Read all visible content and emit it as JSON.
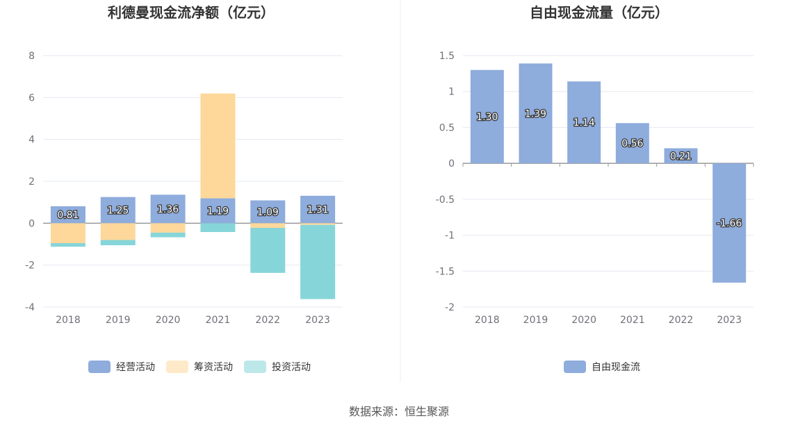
{
  "source": "数据来源：恒生聚源",
  "chart_data": [
    {
      "type": "bar",
      "stacked": true,
      "title": "利德曼现金流净额（亿元）",
      "categories": [
        "2018",
        "2019",
        "2020",
        "2021",
        "2022",
        "2023"
      ],
      "ylim": [
        -4,
        8
      ],
      "yticks": [
        -4,
        -2,
        0,
        2,
        4,
        6,
        8
      ],
      "grid": true,
      "legend": "bottom",
      "series": [
        {
          "name": "经营活动",
          "color": "#8eacdc",
          "values": [
            0.81,
            1.25,
            1.36,
            1.19,
            1.09,
            1.31
          ],
          "labels": [
            "0.81",
            "1.25",
            "1.36",
            "1.19",
            "1.09",
            "1.31"
          ]
        },
        {
          "name": "筹资活动",
          "color": "#fdd89a",
          "values": [
            -0.95,
            -0.8,
            -0.45,
            5.0,
            -0.22,
            -0.08
          ]
        },
        {
          "name": "投资活动",
          "color": "#86d5d9",
          "values": [
            -0.17,
            -0.25,
            -0.22,
            -0.42,
            -2.15,
            -3.54
          ]
        }
      ]
    },
    {
      "type": "bar",
      "title": "自由现金流量（亿元）",
      "categories": [
        "2018",
        "2019",
        "2020",
        "2021",
        "2022",
        "2023"
      ],
      "ylim": [
        -2,
        1.5
      ],
      "yticks": [
        -2,
        -1.5,
        -1,
        -0.5,
        0,
        0.5,
        1,
        1.5
      ],
      "grid": true,
      "legend": "bottom",
      "series": [
        {
          "name": "自由现金流",
          "color": "#8eacdc",
          "values": [
            1.3,
            1.39,
            1.14,
            0.56,
            0.21,
            -1.66
          ],
          "labels": [
            "1.30",
            "1.39",
            "1.14",
            "0.56",
            "0.21",
            "-1.66"
          ]
        }
      ]
    }
  ]
}
